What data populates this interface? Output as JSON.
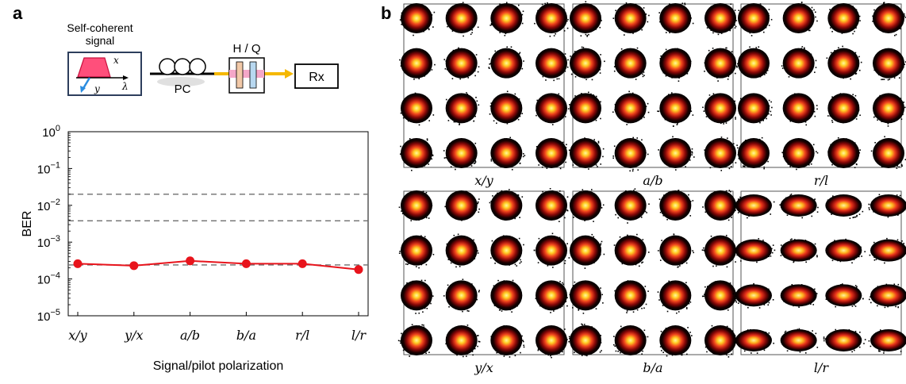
{
  "panel_labels": {
    "a": "a",
    "b": "b"
  },
  "setup": {
    "source_label_line1": "Self-coherent",
    "source_label_line2": "signal",
    "axis_x": "x",
    "axis_y": "y",
    "axis_lambda": "λ",
    "pc_label": "PC",
    "hq_label": "H / Q",
    "rx_label": "Rx",
    "colors": {
      "trapezoid": "#ff4f7b",
      "arrow": "#2a8ce0",
      "beam": "#f5b800",
      "pink_beam": "#f4a7c8",
      "hwp": "#f2c9a8",
      "qwp": "#b8d8f0",
      "box_border": "#2d3e5c"
    }
  },
  "chart_data": {
    "type": "line",
    "categories": [
      "x/y",
      "y/x",
      "a/b",
      "b/a",
      "r/l",
      "l/r"
    ],
    "values": [
      0.00026,
      0.00023,
      0.00031,
      0.00026,
      0.00026,
      0.00018
    ],
    "series_color": "#e8141c",
    "yscale": "log",
    "ylim": [
      1e-05,
      1
    ],
    "yticks": [
      {
        "value": 1.0,
        "base": "10",
        "exp": "0"
      },
      {
        "value": 0.1,
        "base": "10",
        "exp": "−1"
      },
      {
        "value": 0.01,
        "base": "10",
        "exp": "−2"
      },
      {
        "value": 0.001,
        "base": "10",
        "exp": "−3"
      },
      {
        "value": 0.0001,
        "base": "10",
        "exp": "−4"
      },
      {
        "value": 1e-05,
        "base": "10",
        "exp": "−5"
      }
    ],
    "thresholds": [
      0.02,
      0.0038,
      0.00024
    ],
    "xlabel": "Signal/pilot polarization",
    "ylabel": "BER"
  },
  "constellations": {
    "order": 16,
    "panels": [
      {
        "label": "x/y"
      },
      {
        "label": "a/b"
      },
      {
        "label": "r/l"
      },
      {
        "label": "y/x"
      },
      {
        "label": "b/a"
      },
      {
        "label": "l/r"
      }
    ]
  }
}
